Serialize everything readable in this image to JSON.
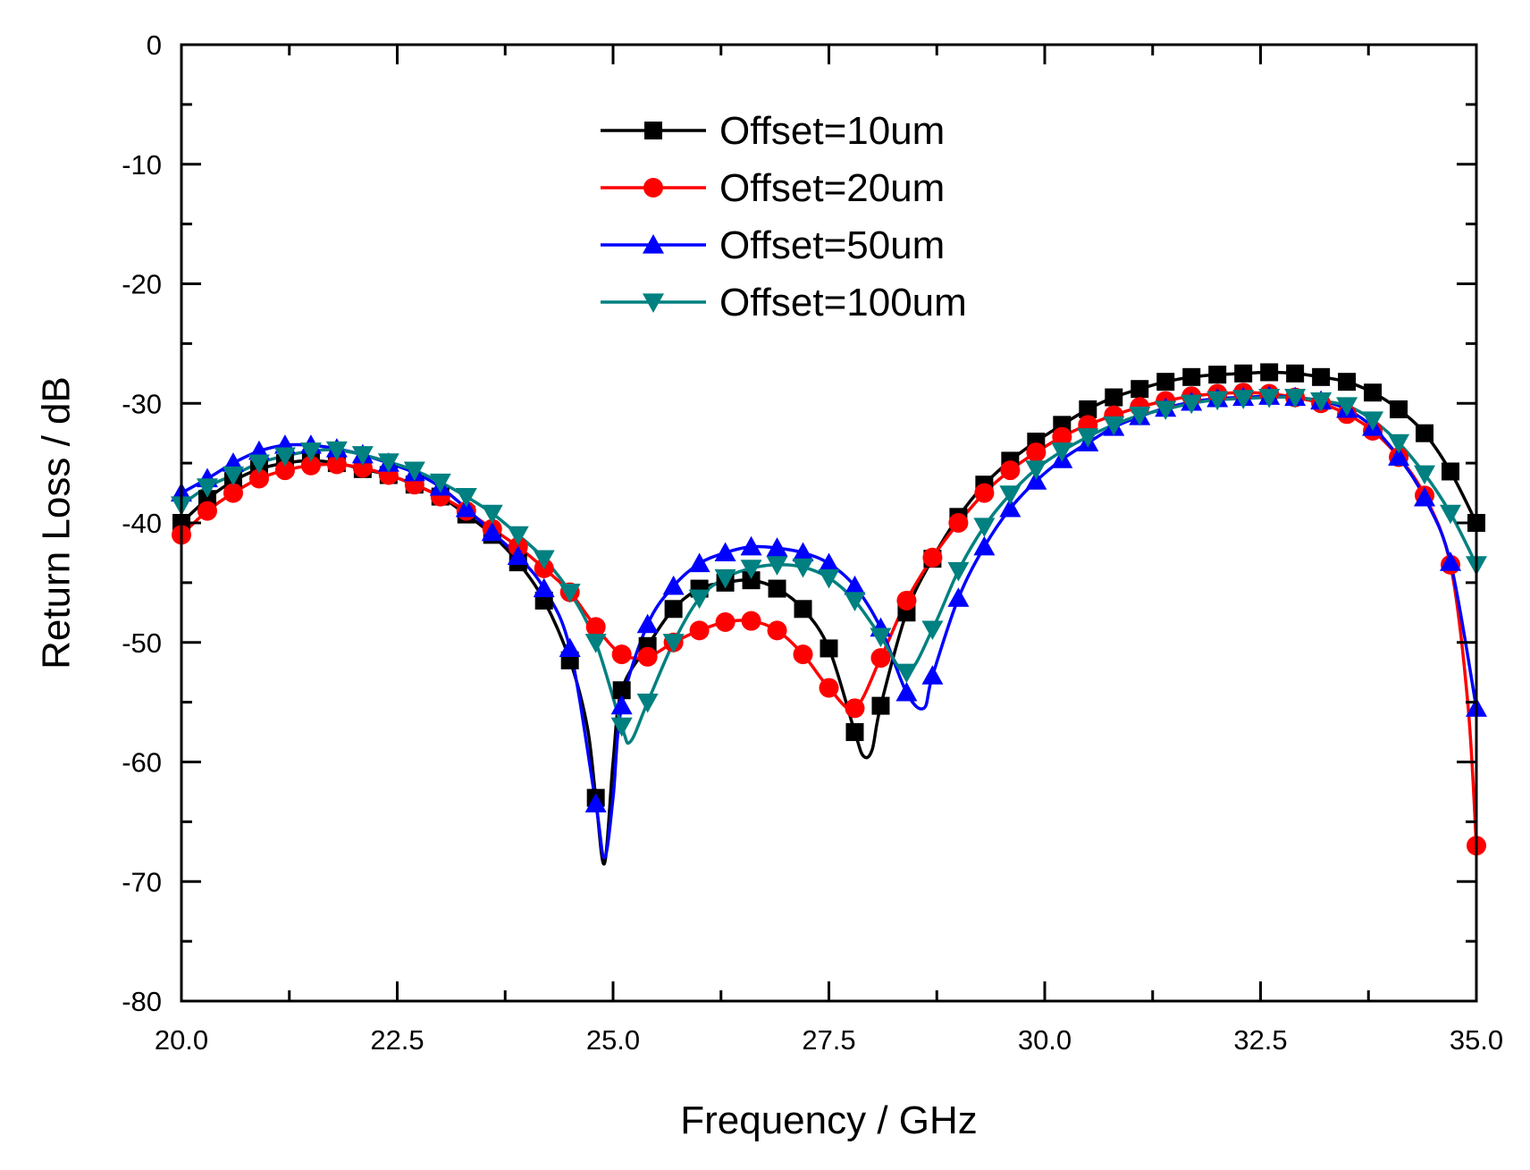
{
  "chart_data": {
    "type": "line",
    "xlabel": "Frequency / GHz",
    "ylabel": "Return Loss / dB",
    "xlim": [
      20.0,
      35.0
    ],
    "ylim": [
      -80,
      0
    ],
    "x_ticks": [
      "20.0",
      "22.5",
      "25.0",
      "27.5",
      "30.0",
      "32.5",
      "35.0"
    ],
    "y_ticks": [
      "0",
      "-10",
      "-20",
      "-30",
      "-40",
      "-50",
      "-60",
      "-70",
      "-80"
    ],
    "grid": false,
    "legend_position": "top-center",
    "series": [
      {
        "name": "Offset=10um",
        "color": "#000000",
        "marker": "square",
        "x": [
          20.0,
          20.3,
          20.6,
          20.9,
          21.2,
          21.5,
          21.8,
          22.1,
          22.4,
          22.7,
          23.0,
          23.3,
          23.6,
          23.9,
          24.2,
          24.5,
          24.7,
          24.8,
          24.9,
          25.0,
          25.1,
          25.4,
          25.7,
          26.0,
          26.3,
          26.6,
          26.9,
          27.2,
          27.5,
          27.8,
          27.9,
          28.0,
          28.1,
          28.4,
          28.7,
          29.0,
          29.3,
          29.6,
          29.9,
          30.2,
          30.5,
          30.8,
          31.1,
          31.4,
          31.7,
          32.0,
          32.3,
          32.6,
          32.9,
          33.2,
          33.5,
          33.8,
          34.1,
          34.4,
          34.7,
          35.0
        ],
        "y": [
          -40.0,
          -38.0,
          -36.5,
          -35.5,
          -35.0,
          -34.8,
          -35.0,
          -35.5,
          -36.0,
          -36.8,
          -37.8,
          -39.3,
          -41.0,
          -43.3,
          -46.5,
          -51.5,
          -57.0,
          -63.0,
          -68.5,
          -60.0,
          -54.0,
          -50.3,
          -47.2,
          -45.5,
          -45.0,
          -44.8,
          -45.5,
          -47.2,
          -50.5,
          -57.5,
          -59.5,
          -59.0,
          -55.3,
          -47.5,
          -43.0,
          -39.5,
          -36.8,
          -34.8,
          -33.2,
          -31.8,
          -30.5,
          -29.5,
          -28.8,
          -28.2,
          -27.8,
          -27.6,
          -27.5,
          -27.4,
          -27.5,
          -27.8,
          -28.2,
          -29.1,
          -30.5,
          -32.5,
          -35.7,
          -40.0
        ]
      },
      {
        "name": "Offset=20um",
        "color": "#ff0000",
        "marker": "circle",
        "x": [
          20.0,
          20.3,
          20.6,
          20.9,
          21.2,
          21.5,
          21.8,
          22.1,
          22.4,
          22.7,
          23.0,
          23.3,
          23.6,
          23.9,
          24.2,
          24.5,
          24.8,
          25.1,
          25.4,
          25.7,
          26.0,
          26.3,
          26.6,
          26.9,
          27.2,
          27.5,
          27.8,
          28.1,
          28.4,
          28.7,
          29.0,
          29.3,
          29.6,
          29.9,
          30.2,
          30.5,
          30.8,
          31.1,
          31.4,
          31.7,
          32.0,
          32.3,
          32.6,
          32.9,
          33.2,
          33.5,
          33.8,
          34.1,
          34.4,
          34.7,
          34.9,
          35.0
        ],
        "y": [
          -41.0,
          -39.0,
          -37.5,
          -36.3,
          -35.6,
          -35.2,
          -35.1,
          -35.4,
          -36.0,
          -36.8,
          -37.8,
          -39.0,
          -40.5,
          -42.0,
          -43.8,
          -45.8,
          -48.7,
          -51.0,
          -51.2,
          -50.0,
          -49.0,
          -48.3,
          -48.2,
          -49.0,
          -51.0,
          -53.8,
          -55.5,
          -51.3,
          -46.5,
          -42.9,
          -40.0,
          -37.5,
          -35.6,
          -34.1,
          -32.8,
          -31.8,
          -31.0,
          -30.3,
          -29.8,
          -29.4,
          -29.2,
          -29.1,
          -29.2,
          -29.5,
          -30.0,
          -30.9,
          -32.3,
          -34.5,
          -37.7,
          -43.5,
          -55.0,
          -67.0
        ]
      },
      {
        "name": "Offset=50um",
        "color": "#0000ff",
        "marker": "triangle-up",
        "x": [
          20.0,
          20.3,
          20.6,
          20.9,
          21.2,
          21.5,
          21.8,
          22.1,
          22.4,
          22.7,
          23.0,
          23.3,
          23.6,
          23.9,
          24.2,
          24.5,
          24.8,
          24.9,
          25.0,
          25.1,
          25.4,
          25.7,
          26.0,
          26.3,
          26.6,
          26.9,
          27.2,
          27.5,
          27.8,
          28.1,
          28.4,
          28.6,
          28.7,
          29.0,
          29.3,
          29.6,
          29.9,
          30.2,
          30.5,
          30.8,
          31.1,
          31.4,
          31.7,
          32.0,
          32.3,
          32.6,
          32.9,
          33.2,
          33.5,
          33.8,
          34.1,
          34.4,
          34.7,
          35.0
        ],
        "y": [
          -37.5,
          -36.3,
          -35.0,
          -34.0,
          -33.5,
          -33.5,
          -33.8,
          -34.3,
          -35.0,
          -35.8,
          -37.0,
          -38.8,
          -40.8,
          -42.8,
          -45.5,
          -50.5,
          -63.5,
          -68.0,
          -63.0,
          -55.3,
          -48.5,
          -45.3,
          -43.4,
          -42.5,
          -42.0,
          -42.1,
          -42.5,
          -43.4,
          -45.3,
          -48.8,
          -54.2,
          -55.5,
          -52.8,
          -46.3,
          -42.0,
          -38.8,
          -36.5,
          -34.7,
          -33.3,
          -32.0,
          -31.1,
          -30.4,
          -29.9,
          -29.6,
          -29.5,
          -29.4,
          -29.5,
          -29.8,
          -30.5,
          -32.0,
          -34.5,
          -37.9,
          -43.3,
          -55.5
        ]
      },
      {
        "name": "Offset=100um",
        "color": "#008080",
        "marker": "triangle-down",
        "x": [
          20.0,
          20.3,
          20.6,
          20.9,
          21.2,
          21.5,
          21.8,
          22.1,
          22.4,
          22.7,
          23.0,
          23.3,
          23.6,
          23.9,
          24.2,
          24.5,
          24.8,
          25.1,
          25.2,
          25.4,
          25.7,
          26.0,
          26.3,
          26.6,
          26.9,
          27.2,
          27.5,
          27.8,
          28.1,
          28.4,
          28.7,
          29.0,
          29.3,
          29.6,
          29.9,
          30.2,
          30.5,
          30.8,
          31.1,
          31.4,
          31.7,
          32.0,
          32.3,
          32.6,
          32.9,
          33.2,
          33.5,
          33.8,
          34.1,
          34.4,
          34.7,
          35.0
        ],
        "y": [
          -38.5,
          -37.0,
          -36.0,
          -35.0,
          -34.4,
          -34.0,
          -33.9,
          -34.3,
          -34.9,
          -35.6,
          -36.6,
          -37.8,
          -39.2,
          -41.0,
          -43.0,
          -45.8,
          -50.0,
          -57.0,
          -58.3,
          -55.0,
          -50.0,
          -46.3,
          -44.6,
          -43.8,
          -43.5,
          -43.7,
          -44.6,
          -46.5,
          -49.5,
          -52.5,
          -48.9,
          -44.0,
          -40.3,
          -37.6,
          -35.5,
          -34.0,
          -32.8,
          -31.8,
          -31.0,
          -30.5,
          -30.0,
          -29.7,
          -29.6,
          -29.5,
          -29.5,
          -29.8,
          -30.2,
          -31.4,
          -33.3,
          -35.9,
          -39.2,
          -43.5
        ]
      }
    ]
  }
}
